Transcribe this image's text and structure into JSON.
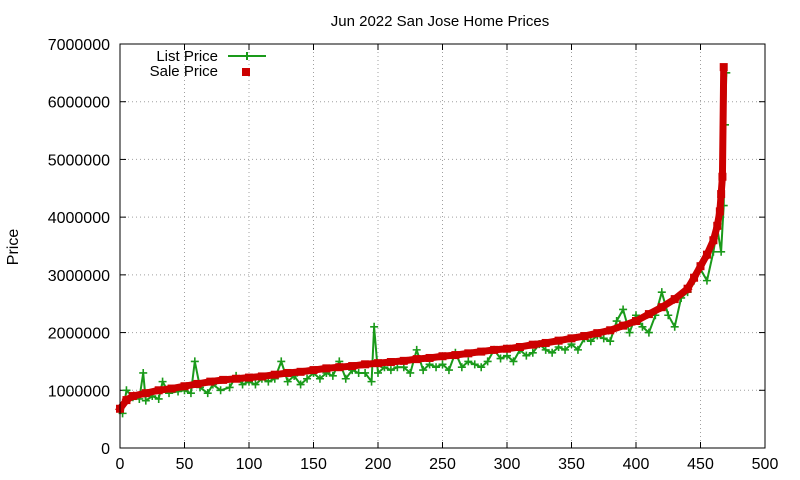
{
  "chart_data": {
    "type": "scatter",
    "title": "Jun 2022 San Jose Home Prices",
    "xlabel": "",
    "ylabel": "Price",
    "xlim": [
      0,
      500
    ],
    "ylim": [
      0,
      7000000
    ],
    "x_ticks": [
      "0",
      "50",
      "100",
      "150",
      "200",
      "250",
      "300",
      "350",
      "400",
      "450",
      "500"
    ],
    "y_ticks": [
      "0",
      "1000000",
      "2000000",
      "3000000",
      "4000000",
      "5000000",
      "6000000",
      "7000000"
    ],
    "grid": true,
    "legend_position": "top-left",
    "series": [
      {
        "name": "List Price",
        "style": "line-with-plus-markers",
        "color": "#1a9a1a",
        "points": [
          [
            0,
            680000
          ],
          [
            2,
            600000
          ],
          [
            5,
            1000000
          ],
          [
            10,
            880000
          ],
          [
            15,
            850000
          ],
          [
            18,
            1300000
          ],
          [
            20,
            820000
          ],
          [
            25,
            900000
          ],
          [
            30,
            850000
          ],
          [
            33,
            1150000
          ],
          [
            38,
            950000
          ],
          [
            45,
            980000
          ],
          [
            50,
            1000000
          ],
          [
            55,
            950000
          ],
          [
            58,
            1500000
          ],
          [
            62,
            1050000
          ],
          [
            68,
            950000
          ],
          [
            72,
            1100000
          ],
          [
            78,
            1000000
          ],
          [
            85,
            1050000
          ],
          [
            90,
            1250000
          ],
          [
            95,
            1100000
          ],
          [
            100,
            1150000
          ],
          [
            105,
            1100000
          ],
          [
            110,
            1200000
          ],
          [
            115,
            1150000
          ],
          [
            120,
            1200000
          ],
          [
            125,
            1500000
          ],
          [
            130,
            1150000
          ],
          [
            135,
            1250000
          ],
          [
            140,
            1100000
          ],
          [
            145,
            1200000
          ],
          [
            150,
            1300000
          ],
          [
            155,
            1200000
          ],
          [
            160,
            1300000
          ],
          [
            165,
            1250000
          ],
          [
            170,
            1500000
          ],
          [
            175,
            1200000
          ],
          [
            180,
            1350000
          ],
          [
            185,
            1300000
          ],
          [
            190,
            1300000
          ],
          [
            195,
            1150000
          ],
          [
            197,
            2100000
          ],
          [
            200,
            1300000
          ],
          [
            205,
            1400000
          ],
          [
            210,
            1350000
          ],
          [
            215,
            1400000
          ],
          [
            220,
            1400000
          ],
          [
            225,
            1300000
          ],
          [
            230,
            1700000
          ],
          [
            235,
            1350000
          ],
          [
            240,
            1450000
          ],
          [
            245,
            1400000
          ],
          [
            250,
            1450000
          ],
          [
            255,
            1350000
          ],
          [
            260,
            1650000
          ],
          [
            265,
            1400000
          ],
          [
            270,
            1500000
          ],
          [
            275,
            1450000
          ],
          [
            280,
            1400000
          ],
          [
            285,
            1500000
          ],
          [
            290,
            1700000
          ],
          [
            295,
            1550000
          ],
          [
            300,
            1600000
          ],
          [
            305,
            1500000
          ],
          [
            310,
            1700000
          ],
          [
            315,
            1600000
          ],
          [
            320,
            1650000
          ],
          [
            325,
            1800000
          ],
          [
            330,
            1700000
          ],
          [
            335,
            1650000
          ],
          [
            340,
            1750000
          ],
          [
            345,
            1700000
          ],
          [
            350,
            1800000
          ],
          [
            355,
            1700000
          ],
          [
            360,
            1900000
          ],
          [
            365,
            1850000
          ],
          [
            370,
            1950000
          ],
          [
            375,
            1900000
          ],
          [
            380,
            1850000
          ],
          [
            385,
            2200000
          ],
          [
            390,
            2400000
          ],
          [
            395,
            2000000
          ],
          [
            400,
            2300000
          ],
          [
            405,
            2100000
          ],
          [
            410,
            2000000
          ],
          [
            415,
            2300000
          ],
          [
            420,
            2700000
          ],
          [
            425,
            2300000
          ],
          [
            430,
            2100000
          ],
          [
            435,
            2600000
          ],
          [
            440,
            2700000
          ],
          [
            445,
            2900000
          ],
          [
            450,
            3100000
          ],
          [
            455,
            2900000
          ],
          [
            460,
            3400000
          ],
          [
            463,
            3800000
          ],
          [
            466,
            3400000
          ],
          [
            468,
            4200000
          ],
          [
            469,
            5600000
          ],
          [
            470,
            6500000
          ]
        ]
      },
      {
        "name": "Sale Price",
        "style": "square-markers",
        "color": "#cc0000",
        "points": [
          [
            0,
            680000
          ],
          [
            5,
            830000
          ],
          [
            10,
            900000
          ],
          [
            20,
            950000
          ],
          [
            30,
            1000000
          ],
          [
            40,
            1030000
          ],
          [
            50,
            1070000
          ],
          [
            60,
            1110000
          ],
          [
            70,
            1150000
          ],
          [
            80,
            1180000
          ],
          [
            90,
            1200000
          ],
          [
            100,
            1220000
          ],
          [
            110,
            1240000
          ],
          [
            120,
            1270000
          ],
          [
            130,
            1300000
          ],
          [
            140,
            1320000
          ],
          [
            150,
            1350000
          ],
          [
            160,
            1380000
          ],
          [
            170,
            1400000
          ],
          [
            180,
            1420000
          ],
          [
            190,
            1450000
          ],
          [
            200,
            1470000
          ],
          [
            210,
            1490000
          ],
          [
            220,
            1510000
          ],
          [
            230,
            1540000
          ],
          [
            240,
            1560000
          ],
          [
            250,
            1590000
          ],
          [
            260,
            1610000
          ],
          [
            270,
            1640000
          ],
          [
            280,
            1670000
          ],
          [
            290,
            1700000
          ],
          [
            300,
            1720000
          ],
          [
            310,
            1750000
          ],
          [
            320,
            1790000
          ],
          [
            330,
            1820000
          ],
          [
            340,
            1860000
          ],
          [
            350,
            1900000
          ],
          [
            360,
            1940000
          ],
          [
            370,
            1990000
          ],
          [
            380,
            2040000
          ],
          [
            390,
            2120000
          ],
          [
            400,
            2200000
          ],
          [
            410,
            2320000
          ],
          [
            420,
            2440000
          ],
          [
            430,
            2580000
          ],
          [
            440,
            2760000
          ],
          [
            445,
            2950000
          ],
          [
            450,
            3150000
          ],
          [
            455,
            3350000
          ],
          [
            460,
            3600000
          ],
          [
            463,
            3850000
          ],
          [
            465,
            4100000
          ],
          [
            466,
            4400000
          ],
          [
            467,
            4700000
          ],
          [
            468,
            6600000
          ]
        ]
      }
    ]
  }
}
